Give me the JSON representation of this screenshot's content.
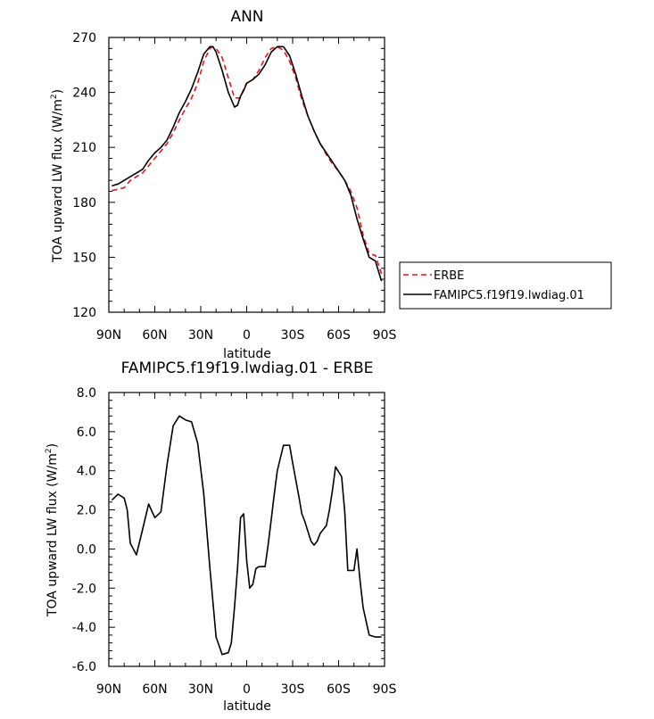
{
  "chart_data": [
    {
      "type": "line",
      "title": "ANN",
      "xlabel": "latitude",
      "ylabel": "TOA upward LW flux (W/m",
      "ylabel_sup": "2",
      "ylabel_close": ")",
      "xlim": [
        90,
        -90
      ],
      "ylim": [
        120,
        270
      ],
      "xticks": [
        {
          "v": 90,
          "label": "90N"
        },
        {
          "v": 60,
          "label": "60N"
        },
        {
          "v": 30,
          "label": "30N"
        },
        {
          "v": 0,
          "label": "0"
        },
        {
          "v": -30,
          "label": "30S"
        },
        {
          "v": -60,
          "label": "60S"
        },
        {
          "v": -90,
          "label": "90S"
        }
      ],
      "yticks": [
        {
          "v": 120,
          "label": "120"
        },
        {
          "v": 150,
          "label": "150"
        },
        {
          "v": 180,
          "label": "180"
        },
        {
          "v": 210,
          "label": "210"
        },
        {
          "v": 240,
          "label": "240"
        },
        {
          "v": 270,
          "label": "270"
        }
      ],
      "legend_position": "right",
      "series": [
        {
          "name": "ERBE",
          "color": "#e8141c",
          "dash": "dashed",
          "x": [
            88,
            84,
            80,
            76,
            72,
            68,
            64,
            60,
            56,
            52,
            48,
            44,
            40,
            36,
            32,
            28,
            24,
            22,
            20,
            16,
            12,
            8,
            4,
            2,
            0,
            -4,
            -8,
            -12,
            -16,
            -20,
            -24,
            -28,
            -32,
            -36,
            -40,
            -44,
            -48,
            -52,
            -56,
            -60,
            -64,
            -68,
            -72,
            -76,
            -80,
            -84,
            -88
          ],
          "y": [
            186.5,
            187,
            188,
            192,
            194,
            196,
            200,
            204,
            208,
            212,
            218,
            225,
            231,
            237,
            245,
            257,
            264,
            265,
            264,
            259,
            248,
            237,
            237,
            242,
            245,
            247,
            252,
            259,
            264,
            265,
            263,
            257,
            248,
            236,
            227,
            219,
            212,
            206,
            201,
            197,
            192,
            186,
            177,
            162,
            152,
            151,
            141
          ]
        },
        {
          "name": "FAMIPC5.f19f19.lwdiag.01",
          "color": "#000000",
          "dash": "solid",
          "x": [
            88,
            84,
            80,
            76,
            72,
            68,
            64,
            60,
            56,
            52,
            48,
            44,
            40,
            36,
            32,
            28,
            24,
            22,
            20,
            16,
            12,
            8,
            6,
            4,
            2,
            0,
            -4,
            -8,
            -12,
            -16,
            -20,
            -24,
            -28,
            -32,
            -36,
            -40,
            -44,
            -48,
            -52,
            -56,
            -60,
            -64,
            -68,
            -72,
            -76,
            -80,
            -84,
            -88
          ],
          "y": [
            189,
            190,
            192,
            194,
            196,
            198,
            203,
            207,
            210,
            214,
            221,
            229,
            235,
            242,
            251,
            261,
            265,
            265,
            262,
            252,
            240,
            232,
            233,
            238,
            241,
            245,
            247,
            250,
            255,
            262,
            265,
            265,
            260,
            250,
            238,
            227,
            219,
            212,
            207,
            202,
            197,
            192,
            184,
            171,
            160,
            150,
            148,
            137
          ]
        }
      ]
    },
    {
      "type": "line",
      "title": "FAMIPC5.f19f19.lwdiag.01 - ERBE",
      "xlabel": "latitude",
      "ylabel": "TOA upward LW flux (W/m",
      "ylabel_sup": "2",
      "ylabel_close": ")",
      "xlim": [
        90,
        -90
      ],
      "ylim": [
        -6,
        8
      ],
      "xticks": [
        {
          "v": 90,
          "label": "90N"
        },
        {
          "v": 60,
          "label": "60N"
        },
        {
          "v": 30,
          "label": "30N"
        },
        {
          "v": 0,
          "label": "0"
        },
        {
          "v": -30,
          "label": "30S"
        },
        {
          "v": -60,
          "label": "60S"
        },
        {
          "v": -90,
          "label": "90S"
        }
      ],
      "yticks": [
        {
          "v": -6,
          "label": "-6.0"
        },
        {
          "v": -4,
          "label": "-4.0"
        },
        {
          "v": -2,
          "label": "-2.0"
        },
        {
          "v": 0,
          "label": "0.0"
        },
        {
          "v": 2,
          "label": "2.0"
        },
        {
          "v": 4,
          "label": "4.0"
        },
        {
          "v": 6,
          "label": "6.0"
        },
        {
          "v": 8,
          "label": "8.0"
        }
      ],
      "series": [
        {
          "name": "",
          "color": "#000000",
          "dash": "solid",
          "x": [
            88,
            84,
            80,
            78,
            76,
            72,
            68,
            64,
            60,
            56,
            52,
            48,
            44,
            40,
            36,
            32,
            28,
            24,
            20,
            16,
            12,
            10,
            8,
            6,
            4,
            2,
            0,
            -2,
            -4,
            -6,
            -8,
            -12,
            -14,
            -16,
            -18,
            -20,
            -24,
            -26,
            -28,
            -30,
            -34,
            -36,
            -38,
            -42,
            -44,
            -46,
            -48,
            -52,
            -54,
            -56,
            -58,
            -62,
            -64,
            -66,
            -70,
            -72,
            -74,
            -76,
            -80,
            -84,
            -88
          ],
          "y": [
            2.5,
            2.8,
            2.6,
            2.0,
            0.3,
            -0.3,
            1.0,
            2.3,
            1.6,
            1.9,
            4.3,
            6.3,
            6.8,
            6.6,
            6.5,
            5.4,
            2.8,
            -1.0,
            -4.5,
            -5.4,
            -5.3,
            -4.8,
            -3.0,
            -1.0,
            1.6,
            1.8,
            -0.6,
            -2.0,
            -1.8,
            -1.0,
            -0.9,
            -0.9,
            0.2,
            1.5,
            2.8,
            4.0,
            5.3,
            5.3,
            5.3,
            4.4,
            2.7,
            1.8,
            1.4,
            0.4,
            0.2,
            0.4,
            0.8,
            1.2,
            2.0,
            3.0,
            4.2,
            3.7,
            1.9,
            -1.1,
            -1.1,
            0.0,
            -1.6,
            -3.0,
            -4.4,
            -4.5,
            -4.5
          ]
        }
      ]
    }
  ]
}
